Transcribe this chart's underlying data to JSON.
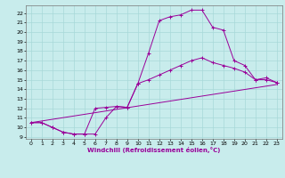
{
  "xlabel": "Windchill (Refroidissement éolien,°C)",
  "bg_color": "#c8ecec",
  "line_color": "#990099",
  "grid_color": "#a8d8d8",
  "xlim": [
    -0.5,
    23.5
  ],
  "ylim": [
    8.8,
    22.8
  ],
  "xticks": [
    0,
    1,
    2,
    3,
    4,
    5,
    6,
    7,
    8,
    9,
    10,
    11,
    12,
    13,
    14,
    15,
    16,
    17,
    18,
    19,
    20,
    21,
    22,
    23
  ],
  "yticks": [
    9,
    10,
    11,
    12,
    13,
    14,
    15,
    16,
    17,
    18,
    19,
    20,
    21,
    22
  ],
  "line1_x": [
    0,
    1,
    2,
    3,
    4,
    5,
    6,
    7,
    8,
    9,
    10,
    11,
    12,
    13,
    14,
    15,
    16,
    17,
    18,
    19,
    20,
    21,
    22,
    23
  ],
  "line1_y": [
    10.5,
    10.5,
    10.0,
    9.5,
    9.3,
    9.3,
    9.3,
    11.0,
    12.2,
    12.1,
    14.6,
    17.8,
    21.2,
    21.6,
    21.8,
    22.3,
    22.3,
    20.5,
    20.2,
    17.0,
    16.5,
    15.0,
    15.0,
    14.7
  ],
  "line2_x": [
    0,
    1,
    2,
    3,
    4,
    5,
    6,
    7,
    8,
    9,
    10,
    11,
    12,
    13,
    14,
    15,
    16,
    17,
    18,
    19,
    20,
    21,
    22,
    23
  ],
  "line2_y": [
    10.5,
    10.5,
    10.0,
    9.5,
    9.3,
    9.3,
    12.0,
    12.1,
    12.2,
    12.1,
    14.6,
    15.0,
    15.5,
    16.0,
    16.5,
    17.0,
    17.3,
    16.8,
    16.5,
    16.2,
    15.8,
    15.0,
    15.2,
    14.7
  ],
  "line3_x": [
    0,
    23
  ],
  "line3_y": [
    10.5,
    14.5
  ],
  "markersize": 2.5
}
